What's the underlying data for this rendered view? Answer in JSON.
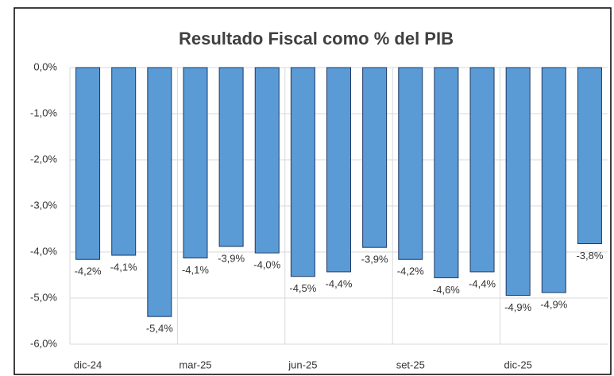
{
  "chart_data": {
    "type": "bar",
    "title": "Resultado Fiscal como % del PIB",
    "categories": [
      "dic-24",
      null,
      null,
      "mar-25",
      null,
      null,
      "jun-25",
      null,
      null,
      "set-25",
      null,
      null,
      "dic-25",
      null,
      null
    ],
    "values": [
      -4.16,
      -4.07,
      -5.4,
      -4.13,
      -3.88,
      -4.02,
      -4.53,
      -4.43,
      -3.9,
      -4.16,
      -4.56,
      -4.43,
      -4.94,
      -4.88,
      -3.82
    ],
    "value_labels": [
      "-4,2%",
      "-4,1%",
      "-5,4%",
      "-4,1%",
      "-3,9%",
      "-4,0%",
      "-4,5%",
      "-4,4%",
      "-3,9%",
      "-4,2%",
      "-4,6%",
      "-4,4%",
      "-4,9%",
      "-4,9%",
      "-3,8%"
    ],
    "color": "#5b9bd5",
    "ylim": [
      -6,
      0
    ],
    "yticks": [
      {
        "value": 0,
        "label": "0,0%"
      },
      {
        "value": -1,
        "label": "-1,0%"
      },
      {
        "value": -2,
        "label": "-2,0%"
      },
      {
        "value": -3,
        "label": "-3,0%"
      },
      {
        "value": -4,
        "label": "-4,0%"
      },
      {
        "value": -5,
        "label": "-5,0%"
      },
      {
        "value": -6,
        "label": "-6,0%"
      }
    ],
    "grid": true
  }
}
